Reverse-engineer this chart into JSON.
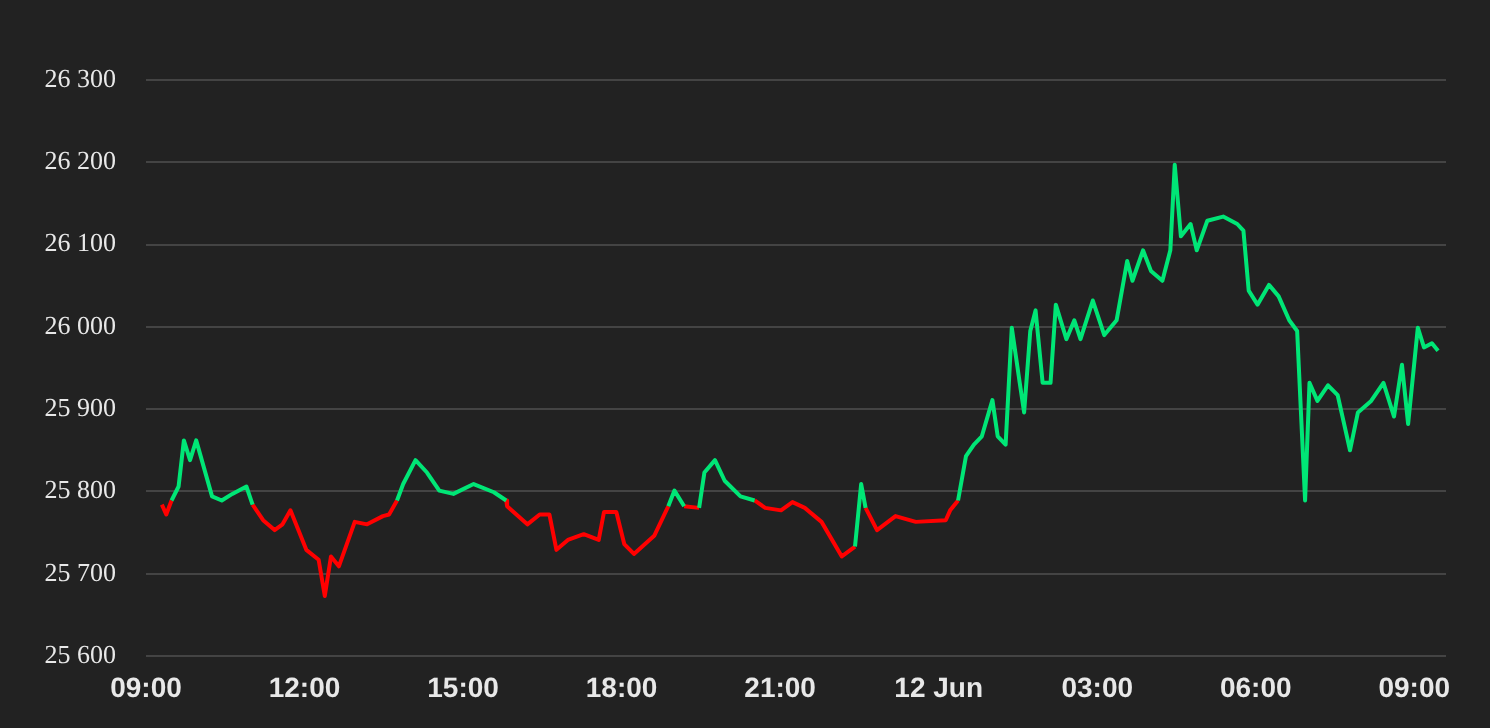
{
  "chart_data": {
    "type": "line",
    "xlim": [
      "--06-11T09:00",
      "--06-12T09:36"
    ],
    "ylim": [
      25600,
      26300
    ],
    "xticks": [
      {
        "value": "--06-11T09:00",
        "label": "09:00"
      },
      {
        "value": "--06-11T12:00",
        "label": "12:00"
      },
      {
        "value": "--06-11T15:00",
        "label": "15:00"
      },
      {
        "value": "--06-11T18:00",
        "label": "18:00"
      },
      {
        "value": "--06-11T21:00",
        "label": "21:00"
      },
      {
        "value": "--06-12T00:00",
        "label": "12 Jun"
      },
      {
        "value": "--06-12T03:00",
        "label": "03:00"
      },
      {
        "value": "--06-12T06:00",
        "label": "06:00"
      },
      {
        "value": "--06-12T09:00",
        "label": "09:00"
      }
    ],
    "yticks": [
      {
        "value": 25600,
        "label": "25 600"
      },
      {
        "value": 25700,
        "label": "25 700"
      },
      {
        "value": 25800,
        "label": "25 800"
      },
      {
        "value": 25900,
        "label": "25 900"
      },
      {
        "value": 26000,
        "label": "26 000"
      },
      {
        "value": 26100,
        "label": "26 100"
      },
      {
        "value": 26200,
        "label": "26 200"
      },
      {
        "value": 26300,
        "label": "26 300"
      }
    ],
    "grid": "y",
    "legend": false,
    "series": [
      {
        "color": "#00e676",
        "x": [
          "--06-11T09:29",
          "--06-11T09:37",
          "--06-11T09:43",
          "--06-11T09:50",
          "--06-11T09:57",
          "--06-11T10:06",
          "--06-11T10:15",
          "--06-11T10:26",
          "--06-11T10:38",
          "--06-11T10:54",
          "--06-11T11:01",
          "--06-11T12:24",
          "--06-11T13:45",
          "--06-11T13:52",
          "--06-11T14:06",
          "--06-11T14:19",
          "--06-11T14:33",
          "--06-11T14:49",
          "--06-11T15:12",
          "--06-11T15:35",
          "--06-11T15:49",
          "--06-11T17:18",
          "--06-11T18:53",
          "--06-11T19:00",
          "--06-11T19:11",
          "--06-11T19:18",
          "--06-11T19:28",
          "--06-11T19:34",
          "--06-11T19:46",
          "--06-11T19:57",
          "--06-11T20:15",
          "--06-11T20:31",
          "--06-11T21:30",
          "--06-11T22:25",
          "--06-11T22:32",
          "--06-11T22:37",
          "--06-11T23:30",
          "--06-12T00:22",
          "--06-12T00:31",
          "--06-12T00:40",
          "--06-12T00:49",
          "--06-12T01:01",
          "--06-12T01:07",
          "--06-12T01:16",
          "--06-12T01:23",
          "--06-12T01:32",
          "--06-12T01:37",
          "--06-12T01:44",
          "--06-12T01:50",
          "--06-12T01:58",
          "--06-12T02:07",
          "--06-12T02:13",
          "--06-12T02:25",
          "--06-12T02:34",
          "--06-12T02:41",
          "--06-12T02:55",
          "--06-12T03:08",
          "--06-12T03:22",
          "--06-12T03:34",
          "--06-12T03:40",
          "--06-12T03:52",
          "--06-12T04:01",
          "--06-12T04:14",
          "--06-12T04:23",
          "--06-12T04:28",
          "--06-12T04:35",
          "--06-12T04:46",
          "--06-12T04:53",
          "--06-12T05:05",
          "--06-12T05:23",
          "--06-12T05:39",
          "--06-12T05:46",
          "--06-12T05:52",
          "--06-12T06:02",
          "--06-12T06:15",
          "--06-12T06:26",
          "--06-12T06:38",
          "--06-12T06:47",
          "--06-12T06:56",
          "--06-12T07:01",
          "--06-12T07:10",
          "--06-12T07:22",
          "--06-12T07:33",
          "--06-12T07:47",
          "--06-12T07:56",
          "--06-12T08:11",
          "--06-12T08:25",
          "--06-12T08:37",
          "--06-12T08:46",
          "--06-12T08:53",
          "--06-12T09:04",
          "--06-12T09:11",
          "--06-12T09:20",
          "--06-12T09:27"
        ],
        "values": [
          25789,
          25806,
          25862,
          25838,
          25862,
          25828,
          25794,
          25789,
          25797,
          25806,
          25784,
          null,
          25789,
          25809,
          25838,
          25823,
          25801,
          25797,
          25809,
          25799,
          25789,
          null,
          25782,
          25801,
          25782,
          null,
          25780,
          25823,
          25838,
          25813,
          25794,
          25789,
          null,
          25733,
          25809,
          25780,
          null,
          25789,
          25843,
          25857,
          25867,
          25911,
          25867,
          25857,
          25999,
          25932,
          25896,
          25995,
          26020,
          25932,
          25932,
          26027,
          25985,
          26008,
          25985,
          26032,
          25990,
          26008,
          26080,
          26056,
          26093,
          26068,
          26056,
          26093,
          26197,
          26110,
          26125,
          26093,
          26129,
          26134,
          26125,
          26117,
          26044,
          26027,
          26051,
          26037,
          26008,
          25995,
          25789,
          25932,
          25910,
          25929,
          25917,
          25850,
          25896,
          25910,
          25932,
          25891,
          25954,
          25882,
          25999,
          25975,
          25980,
          25971
        ]
      },
      {
        "color": "#ff0000",
        "x": [
          "--06-11T09:18",
          "--06-11T09:23",
          "--06-11T09:29",
          "--06-11T10:30",
          "--06-11T11:01",
          "--06-11T11:13",
          "--06-11T11:26",
          "--06-11T11:35",
          "--06-11T11:44",
          "--06-11T11:53",
          "--06-11T12:02",
          "--06-11T12:16",
          "--06-11T12:23",
          "--06-11T12:30",
          "--06-11T12:39",
          "--06-11T12:48",
          "--06-11T12:57",
          "--06-11T13:11",
          "--06-11T13:29",
          "--06-11T13:36",
          "--06-11T13:45",
          "--06-11T14:48",
          "--06-11T15:49",
          "--06-11T15:50",
          "--06-11T16:13",
          "--06-11T16:27",
          "--06-11T16:38",
          "--06-11T16:46",
          "--06-11T16:59",
          "--06-11T17:17",
          "--06-11T17:34",
          "--06-11T17:40",
          "--06-11T17:54",
          "--06-11T18:03",
          "--06-11T18:14",
          "--06-11T18:37",
          "--06-11T18:53",
          "--06-11T19:06",
          "--06-11T19:11",
          "--06-11T19:28",
          "--06-11T20:00",
          "--06-11T20:31",
          "--06-11T20:43",
          "--06-11T21:01",
          "--06-11T21:14",
          "--06-11T21:28",
          "--06-11T21:47",
          "--06-11T22:10",
          "--06-11T22:25",
          "--06-11T22:30",
          "--06-11T22:37",
          "--06-11T22:50",
          "--06-11T23:11",
          "--06-11T23:34",
          "--06-12T00:08",
          "--06-12T00:13",
          "--06-12T00:22"
        ],
        "values": [
          25784,
          25772,
          25789,
          null,
          25784,
          25765,
          25753,
          25760,
          25777,
          25753,
          25729,
          25717,
          25673,
          25721,
          25709,
          25736,
          25763,
          25760,
          25770,
          25772,
          25789,
          null,
          25789,
          25782,
          25760,
          25772,
          25772,
          25729,
          25741,
          25748,
          25741,
          25775,
          25775,
          25736,
          25724,
          25746,
          25782,
          null,
          25782,
          25780,
          null,
          25789,
          25780,
          25777,
          25787,
          25780,
          25763,
          25721,
          25733,
          null,
          25780,
          25753,
          25770,
          25763,
          25765,
          25777,
          25789
        ]
      }
    ]
  }
}
